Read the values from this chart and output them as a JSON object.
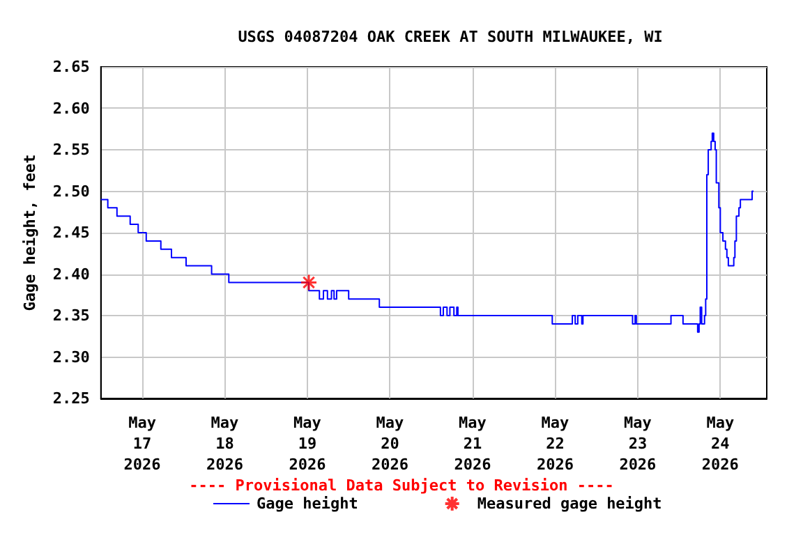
{
  "chart_data": {
    "type": "step",
    "title": "USGS 04087204 OAK CREEK AT SOUTH MILWAUKEE, WI",
    "ylabel": "Gage height, feet",
    "annotations": [
      "---- Provisional Data Subject to Revision ----"
    ],
    "xlim": [
      "2026-05-16T12:00",
      "2026-05-24T13:30"
    ],
    "xticks": [
      {
        "value": "2026-05-17",
        "label": "May\n17\n2026"
      },
      {
        "value": "2026-05-18",
        "label": "May\n18\n2026"
      },
      {
        "value": "2026-05-19",
        "label": "May\n19\n2026"
      },
      {
        "value": "2026-05-20",
        "label": "May\n20\n2026"
      },
      {
        "value": "2026-05-21",
        "label": "May\n21\n2026"
      },
      {
        "value": "2026-05-22",
        "label": "May\n22\n2026"
      },
      {
        "value": "2026-05-23",
        "label": "May\n23\n2026"
      },
      {
        "value": "2026-05-24",
        "label": "May\n24\n2026"
      }
    ],
    "ylim": [
      2.25,
      2.65
    ],
    "yticks": [
      2.25,
      {
        "value": 2.3,
        "label": "2.30"
      },
      2.35,
      {
        "value": 2.4,
        "label": "2.40"
      },
      2.45,
      {
        "value": 2.5,
        "label": "2.50"
      },
      2.55,
      {
        "value": 2.6,
        "label": "2.60"
      },
      2.65
    ],
    "grid": true,
    "legend": "bottom",
    "series": [
      {
        "name": "Gage height",
        "color": "#0000ff",
        "marker": "none",
        "x": [
          "2026-05-16T12:00",
          "2026-05-16T14:00",
          "2026-05-16T16:40",
          "2026-05-16T20:30",
          "2026-05-16T22:50",
          "2026-05-17T01:10",
          "2026-05-17T05:25",
          "2026-05-17T08:30",
          "2026-05-17T12:45",
          "2026-05-17T20:10",
          "2026-05-18T01:10",
          "2026-05-19T00:25",
          "2026-05-19T03:30",
          "2026-05-19T04:40",
          "2026-05-19T05:50",
          "2026-05-19T07:00",
          "2026-05-19T07:45",
          "2026-05-19T08:30",
          "2026-05-19T12:00",
          "2026-05-19T20:55",
          "2026-05-20T14:40",
          "2026-05-20T15:30",
          "2026-05-20T16:35",
          "2026-05-20T17:25",
          "2026-05-20T18:35",
          "2026-05-20T19:25",
          "2026-05-20T19:45",
          "2026-05-21T23:10",
          "2026-05-22T05:00",
          "2026-05-22T05:50",
          "2026-05-22T06:35",
          "2026-05-22T07:45",
          "2026-05-22T08:05",
          "2026-05-22T22:30",
          "2026-05-22T23:15",
          "2026-05-22T23:35",
          "2026-05-23T09:40",
          "2026-05-23T13:10",
          "2026-05-23T17:25",
          "2026-05-23T17:50",
          "2026-05-23T18:10",
          "2026-05-23T18:35",
          "2026-05-23T19:25",
          "2026-05-23T19:45",
          "2026-05-23T20:05",
          "2026-05-23T20:30",
          "2026-05-23T21:20",
          "2026-05-23T21:40",
          "2026-05-23T22:05",
          "2026-05-23T22:30",
          "2026-05-23T22:50",
          "2026-05-23T23:35",
          "2026-05-24T00:00",
          "2026-05-24T00:45",
          "2026-05-24T01:30",
          "2026-05-24T01:55",
          "2026-05-24T02:20",
          "2026-05-24T03:55",
          "2026-05-24T04:15",
          "2026-05-24T04:40",
          "2026-05-24T05:25",
          "2026-05-24T05:50",
          "2026-05-24T09:15",
          "2026-05-24T09:40"
        ],
        "values": [
          2.49,
          2.48,
          2.47,
          2.46,
          2.45,
          2.44,
          2.43,
          2.42,
          2.41,
          2.4,
          2.39,
          2.38,
          2.37,
          2.38,
          2.37,
          2.38,
          2.37,
          2.38,
          2.37,
          2.36,
          2.35,
          2.36,
          2.35,
          2.36,
          2.35,
          2.36,
          2.35,
          2.34,
          2.35,
          2.34,
          2.35,
          2.34,
          2.35,
          2.34,
          2.35,
          2.34,
          2.35,
          2.34,
          2.33,
          2.34,
          2.36,
          2.34,
          2.35,
          2.37,
          2.52,
          2.55,
          2.56,
          2.57,
          2.56,
          2.55,
          2.51,
          2.48,
          2.45,
          2.44,
          2.43,
          2.42,
          2.41,
          2.42,
          2.44,
          2.47,
          2.48,
          2.49,
          2.5,
          2.5
        ]
      },
      {
        "name": "Measured gage height",
        "type": "scatter",
        "color": "#ff0000",
        "marker": "cross",
        "x": [
          "2026-05-19T00:25"
        ],
        "values": [
          2.39
        ]
      }
    ]
  }
}
